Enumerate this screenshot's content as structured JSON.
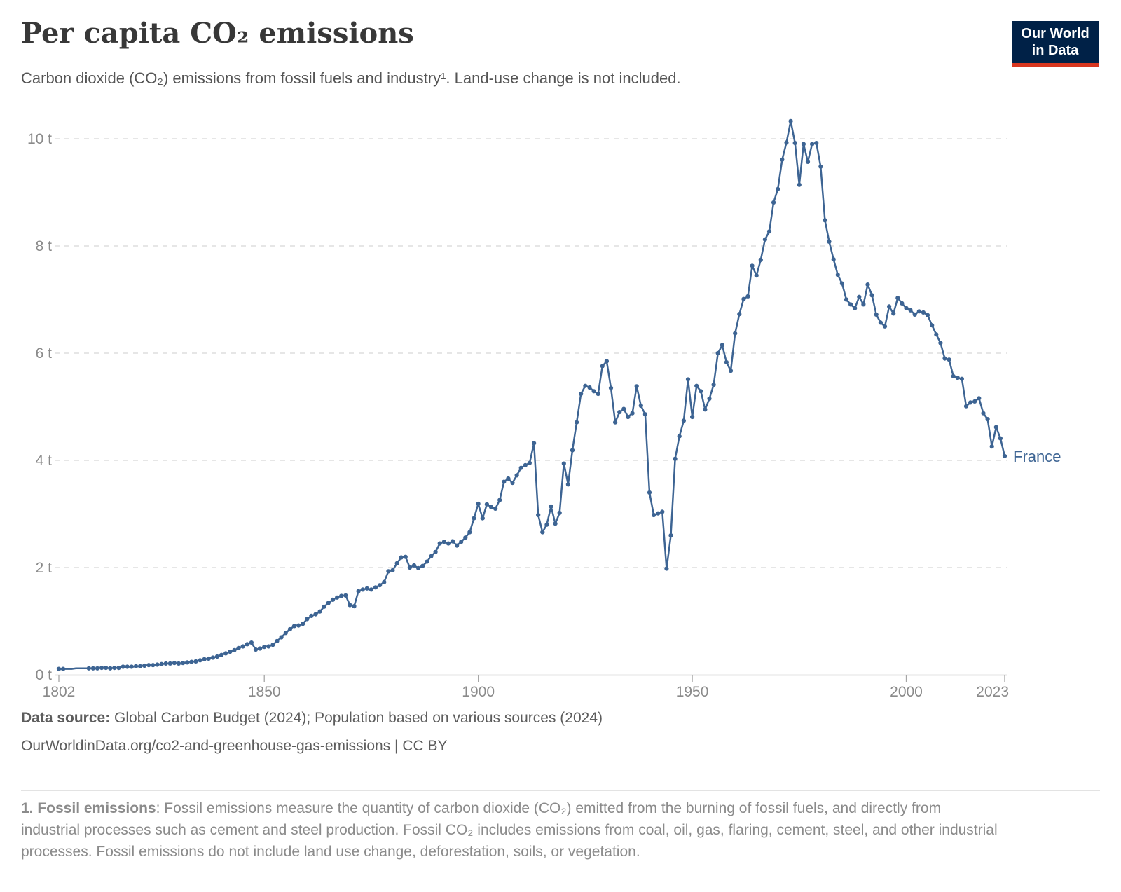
{
  "header": {
    "title": "Per capita CO₂ emissions",
    "subtitle": "Carbon dioxide (CO₂) emissions from fossil fuels and industry¹. Land-use change is not included."
  },
  "logo": {
    "line1": "Our World",
    "line2": "in Data",
    "bg_color": "#002147",
    "accent_color": "#d8361f"
  },
  "chart_data": {
    "type": "line",
    "title": "Per capita CO₂ emissions",
    "entity": "France",
    "series_label": "France",
    "unit": "tonnes per person",
    "line_color": "#3d6493",
    "grid": "horizontal-dashed",
    "legend_position": "end-of-line",
    "x_domain": [
      1802,
      2023
    ],
    "ylim": [
      0,
      10.6
    ],
    "x_ticks": [
      {
        "value": 1802,
        "label": "1802"
      },
      {
        "value": 1850,
        "label": "1850"
      },
      {
        "value": 1900,
        "label": "1900"
      },
      {
        "value": 1950,
        "label": "1950"
      },
      {
        "value": 2000,
        "label": "2000"
      },
      {
        "value": 2023,
        "label": "2023"
      }
    ],
    "y_ticks": [
      {
        "value": 0,
        "label": "0 t"
      },
      {
        "value": 2,
        "label": "2 t"
      },
      {
        "value": 4,
        "label": "4 t"
      },
      {
        "value": 6,
        "label": "6 t"
      },
      {
        "value": 8,
        "label": "8 t"
      },
      {
        "value": 10,
        "label": "10 t"
      }
    ],
    "start_year": 1802,
    "dot_gap_years": [
      1804,
      1805,
      1806,
      1807,
      1808
    ],
    "values": [
      0.11,
      0.11,
      0.11,
      0.11,
      0.12,
      0.12,
      0.12,
      0.12,
      0.12,
      0.12,
      0.13,
      0.13,
      0.12,
      0.13,
      0.13,
      0.15,
      0.15,
      0.15,
      0.16,
      0.16,
      0.17,
      0.18,
      0.18,
      0.19,
      0.2,
      0.21,
      0.21,
      0.22,
      0.21,
      0.22,
      0.23,
      0.24,
      0.25,
      0.27,
      0.29,
      0.3,
      0.32,
      0.34,
      0.37,
      0.4,
      0.43,
      0.46,
      0.5,
      0.53,
      0.57,
      0.6,
      0.47,
      0.49,
      0.52,
      0.53,
      0.56,
      0.63,
      0.7,
      0.78,
      0.85,
      0.91,
      0.92,
      0.95,
      1.04,
      1.1,
      1.13,
      1.18,
      1.27,
      1.34,
      1.4,
      1.44,
      1.47,
      1.48,
      1.3,
      1.28,
      1.56,
      1.59,
      1.61,
      1.59,
      1.63,
      1.67,
      1.73,
      1.93,
      1.95,
      2.08,
      2.19,
      2.2,
      2.0,
      2.04,
      1.99,
      2.03,
      2.11,
      2.21,
      2.29,
      2.45,
      2.48,
      2.45,
      2.49,
      2.41,
      2.48,
      2.56,
      2.66,
      2.92,
      3.19,
      2.92,
      3.18,
      3.13,
      3.1,
      3.26,
      3.6,
      3.66,
      3.58,
      3.72,
      3.86,
      3.91,
      3.95,
      4.32,
      2.98,
      2.66,
      2.8,
      3.14,
      2.82,
      3.02,
      3.94,
      3.55,
      4.19,
      4.71,
      5.24,
      5.39,
      5.36,
      5.29,
      5.24,
      5.76,
      5.85,
      5.35,
      4.71,
      4.9,
      4.96,
      4.81,
      4.88,
      5.38,
      5.02,
      4.86,
      3.4,
      2.98,
      3.01,
      3.04,
      1.98,
      2.6,
      4.03,
      4.45,
      4.74,
      5.51,
      4.81,
      5.39,
      5.29,
      4.95,
      5.15,
      5.41,
      6.0,
      6.15,
      5.83,
      5.67,
      6.37,
      6.73,
      7.01,
      7.06,
      7.63,
      7.45,
      7.74,
      8.12,
      8.27,
      8.81,
      9.06,
      9.61,
      9.93,
      10.33,
      9.92,
      9.14,
      9.9,
      9.57,
      9.9,
      9.92,
      9.48,
      8.48,
      8.08,
      7.75,
      7.46,
      7.3,
      7.0,
      6.91,
      6.84,
      7.05,
      6.91,
      7.28,
      7.08,
      6.72,
      6.57,
      6.5,
      6.87,
      6.74,
      7.03,
      6.93,
      6.84,
      6.8,
      6.72,
      6.78,
      6.76,
      6.71,
      6.52,
      6.35,
      6.19,
      5.9,
      5.88,
      5.57,
      5.54,
      5.52,
      5.01,
      5.08,
      5.1,
      5.16,
      4.88,
      4.77,
      4.26,
      4.62,
      4.41,
      4.08
    ]
  },
  "footer": {
    "source_label": "Data source:",
    "source_text": " Global Carbon Budget (2024); Population based on various sources (2024)",
    "link_text": "OurWorldinData.org/co2-and-greenhouse-gas-emissions | CC BY"
  },
  "footnote": {
    "bold": "1. Fossil emissions",
    "text": ": Fossil emissions measure the quantity of carbon dioxide (CO₂) emitted from the burning of fossil fuels, and directly from industrial processes such as cement and steel production. Fossil CO₂ includes emissions from coal, oil, gas, flaring, cement, steel, and other industrial processes. Fossil emissions do not include land use change, deforestation, soils, or vegetation."
  }
}
